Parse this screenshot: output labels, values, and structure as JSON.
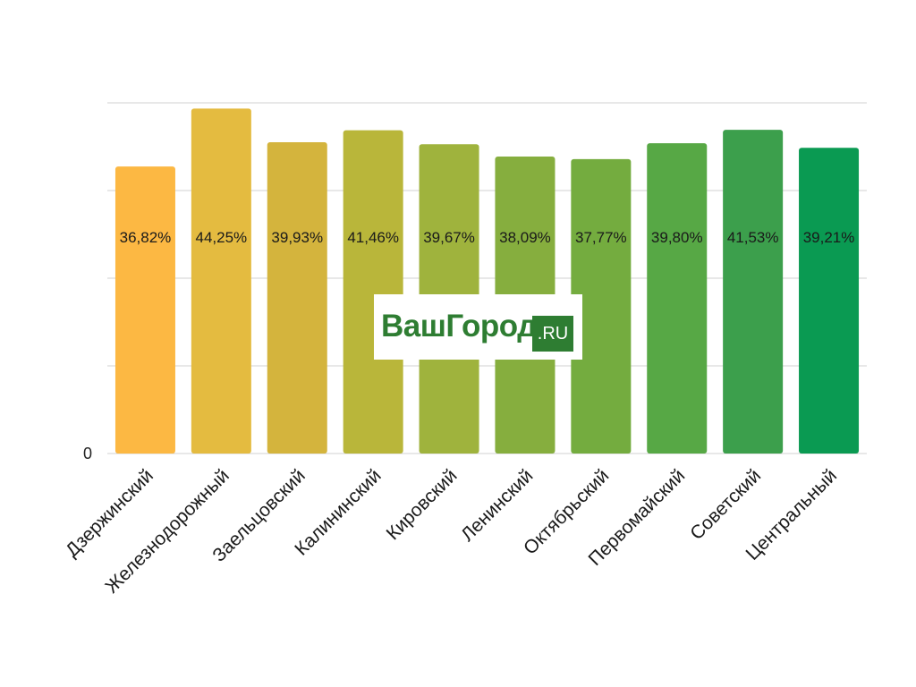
{
  "chart_data": {
    "type": "bar",
    "categories": [
      "Дзержинский",
      "Железнодорожный",
      "Заельцовский",
      "Калининский",
      "Кировский",
      "Ленинский",
      "Октябрьский",
      "Первомайский",
      "Советский",
      "Центральный"
    ],
    "values": [
      36.82,
      44.25,
      39.93,
      41.46,
      39.67,
      38.09,
      37.77,
      39.8,
      41.53,
      39.21
    ],
    "data_labels": [
      "36,82%",
      "44,25%",
      "39,93%",
      "41,46%",
      "39,67%",
      "38,09%",
      "37,77%",
      "39,80%",
      "41,53%",
      "39,21%"
    ],
    "colors": [
      "#fcb843",
      "#e4bb40",
      "#d4b43d",
      "#b9b63a",
      "#9fb33d",
      "#86ae3e",
      "#74ac3f",
      "#57a845",
      "#3c9f4c",
      "#0a9a52"
    ],
    "yticks": [
      "0"
    ],
    "ylim": [
      0,
      45
    ],
    "grid": true,
    "legend": "none"
  },
  "watermark": {
    "brand": "ВашГород",
    "suffix": ".RU"
  }
}
